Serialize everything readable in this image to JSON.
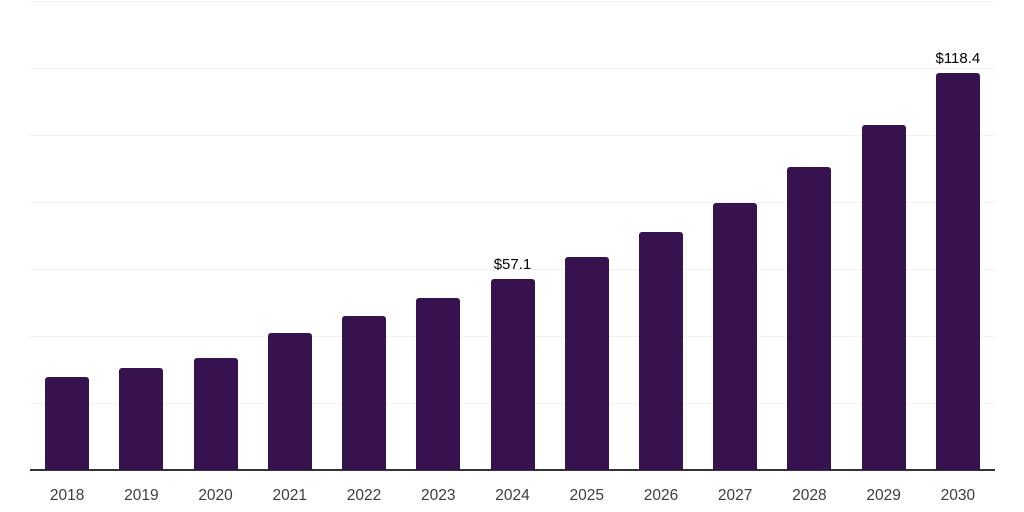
{
  "chart_data": {
    "type": "bar",
    "title": "",
    "xlabel": "",
    "ylabel": "",
    "categories": [
      "2018",
      "2019",
      "2020",
      "2021",
      "2022",
      "2023",
      "2024",
      "2025",
      "2026",
      "2027",
      "2028",
      "2029",
      "2030"
    ],
    "values": [
      27.8,
      30.4,
      33.4,
      40.9,
      45.9,
      51.3,
      57.1,
      63.7,
      70.9,
      79.6,
      90.3,
      103.1,
      118.4
    ],
    "data_labels": [
      null,
      null,
      null,
      null,
      null,
      null,
      "$57.1",
      null,
      null,
      null,
      null,
      null,
      "$118.4"
    ],
    "ylim": [
      0,
      140
    ],
    "gridline_step": 20,
    "grid": true,
    "legend": false,
    "legend_position": "none",
    "colors": {
      "bar": "#36134e",
      "axis": "#333333",
      "gridline": "#f1f1f1",
      "tick_label": "#3d3d3d",
      "data_label": "#000000",
      "background": "#ffffff"
    }
  }
}
